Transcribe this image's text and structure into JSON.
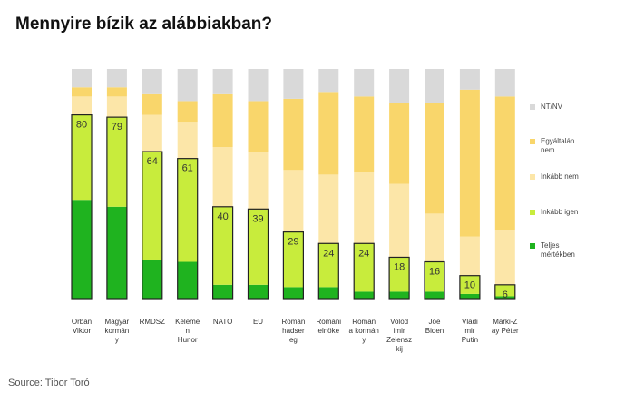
{
  "colors": {
    "nt_nv": "#d9d9d9",
    "egyaltalan_nem": "#f9d66b",
    "inkabb_nem": "#fce6a8",
    "inkabb_igen": "#c8ec3c",
    "teljes_mertekben": "#1fb31f",
    "highlight_border": "#222222"
  },
  "title": "Mennyire bízik az alábbiakban?",
  "source": "Source: Tibor Toró",
  "chart_data": {
    "type": "bar",
    "stacked": true,
    "title": "Mennyire bízik az alábbiakban?",
    "ylim": [
      0,
      100
    ],
    "grid": false,
    "legend_position": "right",
    "categories": [
      "Orbán Viktor",
      "Magyar kormány",
      "RMDSZ",
      "Kelemen Hunor",
      "NATO",
      "EU",
      "Román hadsereg",
      "Román elnöke",
      "Román kormány",
      "Volodimir Zelenszkij",
      "Joe Biden",
      "Vladimir Putin",
      "Márki-Zay Péter"
    ],
    "category_label_lines": [
      [
        "Orbán",
        "Viktor"
      ],
      [
        "Magyar",
        "kormán",
        "y"
      ],
      [
        "RMDSZ"
      ],
      [
        "Keleme",
        "n",
        "Hunor"
      ],
      [
        "NATO"
      ],
      [
        "EU"
      ],
      [
        "Román",
        "hadser",
        "eg"
      ],
      [
        "Románi",
        "elnöke"
      ],
      [
        "Román",
        "a kormán",
        "y"
      ],
      [
        "Volod",
        "imir",
        "Zelensz",
        "kij"
      ],
      [
        "Joe",
        "Biden"
      ],
      [
        "Vladi",
        "mir",
        "Putin"
      ],
      [
        "Márki-Z",
        "ay Péter"
      ]
    ],
    "series": [
      {
        "name": "Teljes mértékben",
        "color_key": "teljes_mertekben",
        "values": [
          43,
          40,
          17,
          16,
          6,
          6,
          5,
          5,
          3,
          3,
          3,
          2,
          1
        ]
      },
      {
        "name": "Inkább igen",
        "color_key": "inkabb_igen",
        "values": [
          37,
          39,
          47,
          45,
          34,
          33,
          24,
          19,
          21,
          15,
          13,
          8,
          5
        ]
      },
      {
        "name": "Inkább nem",
        "color_key": "inkabb_nem",
        "values": [
          8,
          9,
          16,
          16,
          26,
          25,
          27,
          30,
          31,
          32,
          21,
          17,
          24
        ]
      },
      {
        "name": "Egyáltalán nem",
        "color_key": "egyaltalan_nem",
        "values": [
          4,
          4,
          9,
          9,
          23,
          22,
          31,
          36,
          33,
          35,
          48,
          64,
          58
        ]
      },
      {
        "name": "NT/NV",
        "color_key": "nt_nv",
        "values": [
          8,
          8,
          11,
          14,
          11,
          14,
          13,
          10,
          12,
          15,
          15,
          9,
          12
        ]
      }
    ],
    "data_labels": [
      80,
      79,
      64,
      61,
      40,
      39,
      29,
      24,
      24,
      18,
      16,
      10,
      6
    ],
    "legend": [
      {
        "label": "NT/NV",
        "color_key": "nt_nv",
        "lines": [
          "NT/NV"
        ]
      },
      {
        "label": "Egyáltalán nem",
        "color_key": "egyaltalan_nem",
        "lines": [
          "Egyáltalán",
          "nem"
        ]
      },
      {
        "label": "Inkább nem",
        "color_key": "inkabb_nem",
        "lines": [
          "Inkább nem"
        ]
      },
      {
        "label": "Inkább igen",
        "color_key": "inkabb_igen",
        "lines": [
          "Inkább igen"
        ]
      },
      {
        "label": "Teljes mértékben",
        "color_key": "teljes_mertekben",
        "lines": [
          "Teljes",
          "mértékben"
        ]
      }
    ]
  }
}
